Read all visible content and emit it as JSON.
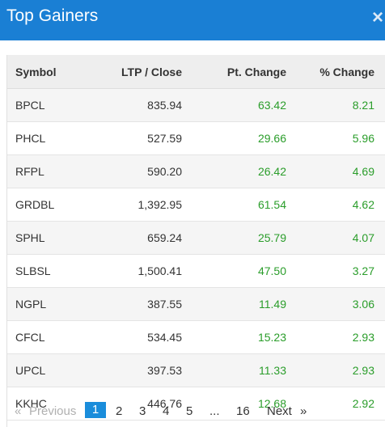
{
  "header": {
    "title": "Top Gainers",
    "close_label": "×"
  },
  "table": {
    "columns": [
      "Symbol",
      "LTP / Close",
      "Pt. Change",
      "% Change"
    ],
    "rows": [
      {
        "symbol": "BPCL",
        "ltp": "835.94",
        "pt_change": "63.42",
        "pct_change": "8.21"
      },
      {
        "symbol": "PHCL",
        "ltp": "527.59",
        "pt_change": "29.66",
        "pct_change": "5.96"
      },
      {
        "symbol": "RFPL",
        "ltp": "590.20",
        "pt_change": "26.42",
        "pct_change": "4.69"
      },
      {
        "symbol": "GRDBL",
        "ltp": "1,392.95",
        "pt_change": "61.54",
        "pct_change": "4.62"
      },
      {
        "symbol": "SPHL",
        "ltp": "659.24",
        "pt_change": "25.79",
        "pct_change": "4.07"
      },
      {
        "symbol": "SLBSL",
        "ltp": "1,500.41",
        "pt_change": "47.50",
        "pct_change": "3.27"
      },
      {
        "symbol": "NGPL",
        "ltp": "387.55",
        "pt_change": "11.49",
        "pct_change": "3.06"
      },
      {
        "symbol": "CFCL",
        "ltp": "534.45",
        "pt_change": "15.23",
        "pct_change": "2.93"
      },
      {
        "symbol": "UPCL",
        "ltp": "397.53",
        "pt_change": "11.33",
        "pct_change": "2.93"
      },
      {
        "symbol": "KKHC",
        "ltp": "446.76",
        "pt_change": "12.68",
        "pct_change": "2.92"
      }
    ]
  },
  "pagination": {
    "prev_arrow": "«",
    "prev_label": "Previous",
    "pages": [
      "1",
      "2",
      "3",
      "4",
      "5"
    ],
    "ellipsis": "...",
    "last_page": "16",
    "next_label": "Next",
    "next_arrow": "»",
    "active_page": "1"
  },
  "colors": {
    "header_bg": "#1a7fd4",
    "positive": "#2a9d2a",
    "active_page_bg": "#1a8ddb"
  }
}
